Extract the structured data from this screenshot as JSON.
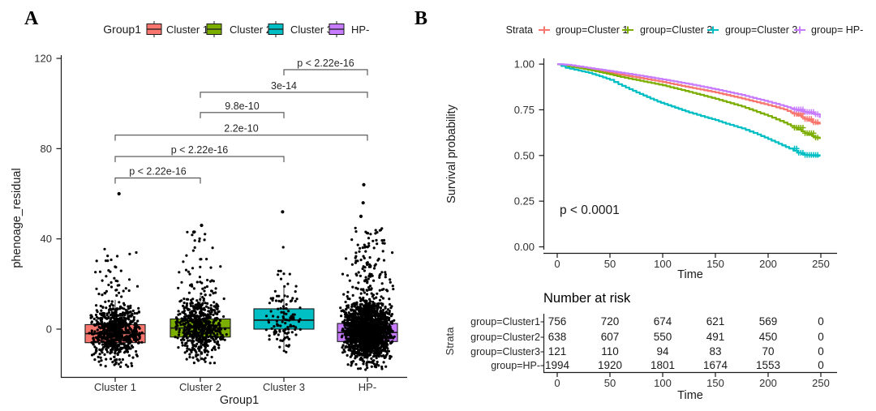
{
  "figure": {
    "background": "#ffffff",
    "panel_a_label": "A",
    "panel_b_label": "B"
  },
  "chart_data": [
    {
      "panel": "A",
      "type": "boxplot-jitter",
      "xlabel": "Group1",
      "ylabel": "phenoage_residual",
      "ylim": [
        -22,
        122
      ],
      "yticks": [
        0,
        40,
        80,
        120
      ],
      "ytick_labels": [
        "0",
        "40",
        "80",
        "120"
      ],
      "categories": [
        "Cluster 1",
        "Cluster 2",
        "Cluster 3",
        "HP-"
      ],
      "legend": {
        "title": "Group1",
        "items": [
          "Cluster 1",
          "Cluster 2",
          "Cluster 3",
          "HP-"
        ]
      },
      "grid": false,
      "point_color": "#000000",
      "groups": [
        {
          "name": "Cluster 1",
          "color": "#F8766D",
          "n": 756,
          "median": -2.0,
          "q1": -6.0,
          "q3": 2.0,
          "whisker_low": -15,
          "whisker_high": 13,
          "cloud_low": -17,
          "tail_max": 36,
          "sd": 5.8,
          "outliers": [
            60
          ]
        },
        {
          "name": "Cluster 2",
          "color": "#7CAE00",
          "n": 638,
          "median": 0.5,
          "q1": -3.5,
          "q3": 4.5,
          "whisker_low": -14,
          "whisker_high": 15,
          "cloud_low": -16,
          "tail_max": 44,
          "sd": 6.2,
          "outliers": [
            46,
            43
          ]
        },
        {
          "name": "Cluster 3",
          "color": "#00BFC4",
          "n": 121,
          "median": 4.0,
          "q1": 0.0,
          "q3": 9.0,
          "whisker_low": -9,
          "whisker_high": 19,
          "cloud_low": -12,
          "tail_max": 39,
          "sd": 6.5,
          "outliers": [
            52
          ]
        },
        {
          "name": "HP-",
          "color": "#C77CFF",
          "n": 1994,
          "median": -1.5,
          "q1": -5.5,
          "q3": 2.5,
          "whisker_low": -15,
          "whisker_high": 13,
          "cloud_low": -18,
          "tail_max": 45,
          "sd": 6.0,
          "outliers": [
            64,
            56,
            50
          ]
        }
      ],
      "comparisons": [
        {
          "group1": 2,
          "group2": 3,
          "label": "p < 2.22e-16",
          "y": 115
        },
        {
          "group1": 1,
          "group2": 3,
          "label": "3e-14",
          "y": 105
        },
        {
          "group1": 1,
          "group2": 2,
          "label": "9.8e-10",
          "y": 96
        },
        {
          "group1": 0,
          "group2": 3,
          "label": "2.2e-10",
          "y": 86
        },
        {
          "group1": 0,
          "group2": 2,
          "label": "p < 2.22e-16",
          "y": 76.5
        },
        {
          "group1": 0,
          "group2": 1,
          "label": "p < 2.22e-16",
          "y": 67
        }
      ]
    },
    {
      "panel": "B",
      "type": "line",
      "subtype": "kaplan-meier-step",
      "xlabel": "Time",
      "ylabel": "Survival probability",
      "xlim": [
        0,
        260
      ],
      "ylim": [
        0,
        1
      ],
      "xticks": [
        0,
        50,
        100,
        150,
        200,
        250
      ],
      "xtick_labels": [
        "0",
        "50",
        "100",
        "150",
        "200",
        "250"
      ],
      "yticks": [
        0,
        0.25,
        0.5,
        0.75,
        1
      ],
      "ytick_labels": [
        "0.00",
        "0.25",
        "0.50",
        "0.75",
        "1.00"
      ],
      "legend": {
        "title": "Strata",
        "items": [
          "group=Cluster 1",
          "group=Cluster 2",
          "group=Cluster 3",
          "group= HP-"
        ]
      },
      "pvalue": "p < 0.0001",
      "grid": false,
      "series": [
        {
          "name": "group=Cluster 1",
          "color": "#F8766D",
          "points": [
            [
              0,
              1.0
            ],
            [
              10,
              0.995
            ],
            [
              25,
              0.978
            ],
            [
              50,
              0.952
            ],
            [
              75,
              0.928
            ],
            [
              100,
              0.902
            ],
            [
              125,
              0.873
            ],
            [
              150,
              0.845
            ],
            [
              175,
              0.812
            ],
            [
              200,
              0.776
            ],
            [
              215,
              0.752
            ],
            [
              225,
              0.728
            ],
            [
              235,
              0.7
            ],
            [
              242,
              0.682
            ],
            [
              249,
              0.67
            ]
          ]
        },
        {
          "name": "group=Cluster 2",
          "color": "#7CAE00",
          "points": [
            [
              0,
              1.0
            ],
            [
              10,
              0.99
            ],
            [
              25,
              0.974
            ],
            [
              40,
              0.956
            ],
            [
              50,
              0.944
            ],
            [
              60,
              0.93
            ],
            [
              75,
              0.913
            ],
            [
              100,
              0.884
            ],
            [
              125,
              0.848
            ],
            [
              150,
              0.81
            ],
            [
              175,
              0.768
            ],
            [
              200,
              0.716
            ],
            [
              215,
              0.68
            ],
            [
              225,
              0.652
            ],
            [
              235,
              0.622
            ],
            [
              245,
              0.598
            ],
            [
              249,
              0.59
            ]
          ]
        },
        {
          "name": "group=Cluster 3",
          "color": "#00BFC4",
          "points": [
            [
              0,
              1.0
            ],
            [
              8,
              0.98
            ],
            [
              20,
              0.965
            ],
            [
              30,
              0.952
            ],
            [
              40,
              0.934
            ],
            [
              50,
              0.914
            ],
            [
              58,
              0.89
            ],
            [
              65,
              0.872
            ],
            [
              75,
              0.845
            ],
            [
              85,
              0.82
            ],
            [
              95,
              0.795
            ],
            [
              105,
              0.775
            ],
            [
              115,
              0.755
            ],
            [
              125,
              0.735
            ],
            [
              140,
              0.71
            ],
            [
              150,
              0.694
            ],
            [
              160,
              0.674
            ],
            [
              175,
              0.648
            ],
            [
              190,
              0.615
            ],
            [
              200,
              0.59
            ],
            [
              210,
              0.564
            ],
            [
              220,
              0.538
            ],
            [
              228,
              0.515
            ],
            [
              235,
              0.503
            ],
            [
              249,
              0.496
            ]
          ]
        },
        {
          "name": "group= HP-",
          "color": "#C77CFF",
          "points": [
            [
              0,
              1.0
            ],
            [
              10,
              0.996
            ],
            [
              25,
              0.983
            ],
            [
              50,
              0.962
            ],
            [
              75,
              0.94
            ],
            [
              100,
              0.916
            ],
            [
              125,
              0.891
            ],
            [
              150,
              0.862
            ],
            [
              175,
              0.831
            ],
            [
              200,
              0.794
            ],
            [
              215,
              0.77
            ],
            [
              225,
              0.752
            ],
            [
              235,
              0.738
            ],
            [
              244,
              0.726
            ],
            [
              249,
              0.706
            ]
          ]
        }
      ],
      "risk_table": {
        "title": "Number at risk",
        "ylabel": "Strata",
        "xlabel": "Time",
        "xticks": [
          0,
          50,
          100,
          150,
          200,
          250
        ],
        "xtick_labels": [
          "0",
          "50",
          "100",
          "150",
          "200",
          "250"
        ],
        "rows": [
          {
            "label": "group=Cluster1",
            "color": "#F8766D",
            "counts": [
              756,
              720,
              674,
              621,
              569,
              0
            ]
          },
          {
            "label": "group=Cluster2",
            "color": "#7CAE00",
            "counts": [
              638,
              607,
              550,
              491,
              450,
              0
            ]
          },
          {
            "label": "group=Cluster3",
            "color": "#00BFC4",
            "counts": [
              121,
              110,
              94,
              83,
              70,
              0
            ]
          },
          {
            "label": "group=HP-",
            "color": "#C77CFF",
            "counts": [
              1994,
              1920,
              1801,
              1674,
              1553,
              0
            ]
          }
        ]
      }
    }
  ]
}
